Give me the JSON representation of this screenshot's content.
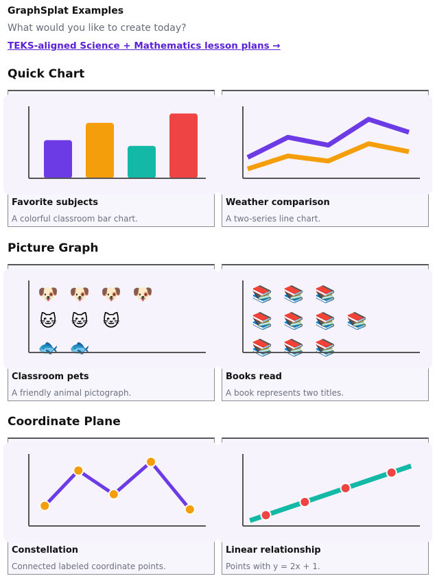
{
  "header": {
    "title": "GraphSplat Examples",
    "subtitle": "What would you like to create today?",
    "link": "TEKS-aligned Science + Mathematics lesson plans →"
  },
  "sections": [
    {
      "heading": "Quick Chart",
      "cards": [
        {
          "title": "Favorite subjects",
          "description": "A colorful classroom bar chart.",
          "thumbnail": {
            "type": "bar",
            "values": [
              53,
              77,
              45,
              90
            ],
            "colors": [
              "#6d3be6",
              "#f59e0b",
              "#14b8a6",
              "#ef4444"
            ],
            "ylim": [
              0,
              100
            ]
          }
        },
        {
          "title": "Weather comparison",
          "description": "A two-series line chart.",
          "thumbnail": {
            "type": "line",
            "ylim": [
              0,
              100
            ],
            "series": [
              {
                "color": "#6d3be6",
                "values": [
                  29,
                  57,
                  46,
                  82,
                  64
                ]
              },
              {
                "color": "#f59e0b",
                "values": [
                  13,
                  31,
                  24,
                  48,
                  37
                ]
              }
            ]
          }
        }
      ]
    },
    {
      "heading": "Picture Graph",
      "cards": [
        {
          "title": "Classroom pets",
          "description": "A friendly animal pictograph.",
          "thumbnail": {
            "type": "pictograph",
            "rows": [
              {
                "icon": "🐶",
                "count": 4
              },
              {
                "icon": "🐱",
                "count": 3
              },
              {
                "icon": "🐟",
                "count": 2
              }
            ]
          }
        },
        {
          "title": "Books read",
          "description": "A book represents two titles.",
          "thumbnail": {
            "type": "pictograph",
            "rows": [
              {
                "icon": "📚",
                "count": 3
              },
              {
                "icon": "📚",
                "count": 4
              },
              {
                "icon": "📚",
                "count": 3
              }
            ]
          }
        }
      ]
    },
    {
      "heading": "Coordinate Plane",
      "cards": [
        {
          "title": "Constellation",
          "description": "Connected labeled coordinate points.",
          "thumbnail": {
            "type": "scatter",
            "connect": true,
            "line_color": "#6d3be6",
            "point_color": "#f59e0b",
            "xlim": [
              0,
              100
            ],
            "ylim": [
              0,
              100
            ],
            "x": [
              9,
              28,
              48,
              69,
              91
            ],
            "y": [
              28,
              77,
              44,
              89,
              23
            ]
          }
        },
        {
          "title": "Linear relationship",
          "description": "Points with y = 2x + 1.",
          "thumbnail": {
            "type": "scatter",
            "connect": false,
            "line_color": "#14b8a6",
            "point_color": "#ef4444",
            "xlim": [
              0,
              10
            ],
            "ylim": [
              0,
              24
            ],
            "line": {
              "x": [
                0.4,
                9.5
              ],
              "y": [
                1.8,
                20
              ]
            },
            "x": [
              1.3,
              3.5,
              5.8,
              8.4
            ],
            "y": [
              3.6,
              8,
              12.6,
              17.8
            ]
          }
        }
      ]
    }
  ]
}
